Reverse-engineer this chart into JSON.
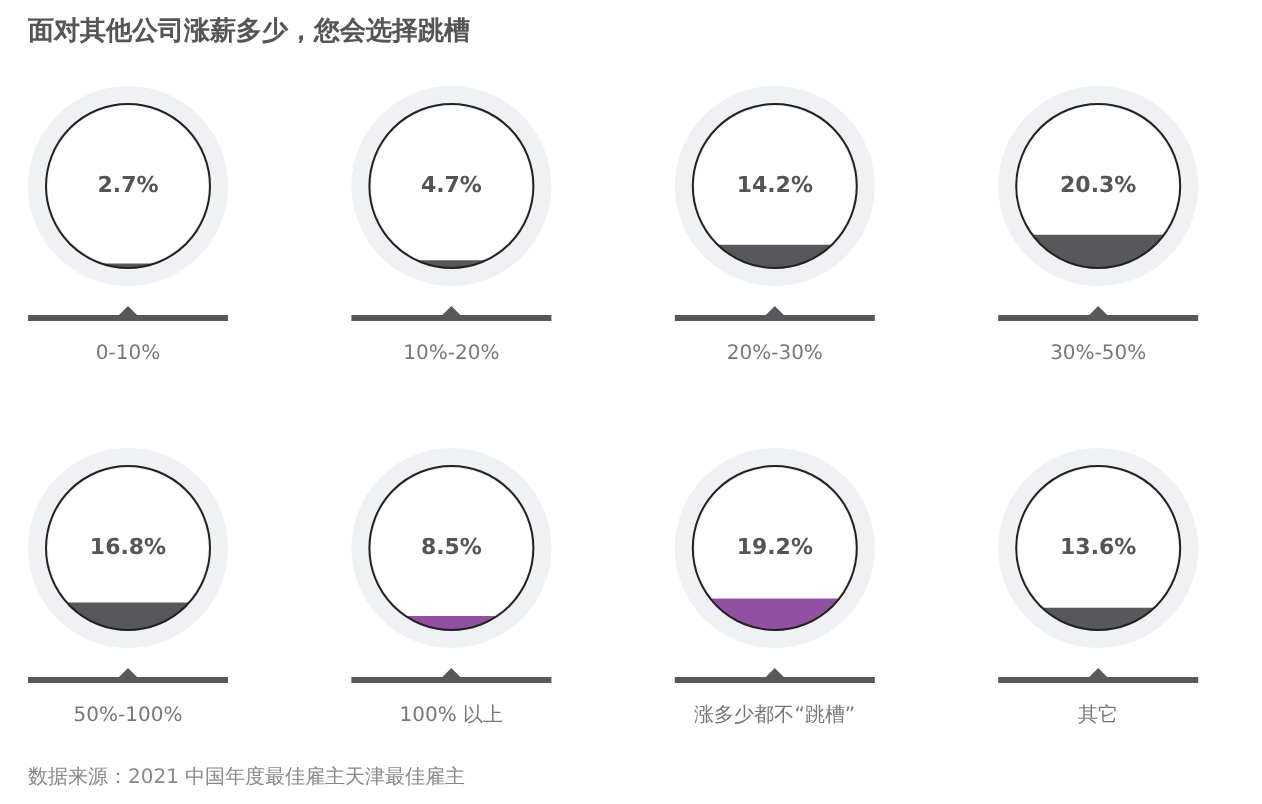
{
  "chart_data": {
    "type": "other",
    "title": "面对其他公司涨薪多少，您会选择跳槽",
    "categories": [
      "0-10%",
      "10%-20%",
      "20%-30%",
      "30%-50%",
      "50%-100%",
      "100% 以上",
      "涨多少都不“跳槽”",
      "其它"
    ],
    "values": [
      2.7,
      4.7,
      14.2,
      20.3,
      16.8,
      8.5,
      19.2,
      13.6
    ],
    "colors": [
      "#58585a",
      "#58585a",
      "#58585a",
      "#58585a",
      "#58585a",
      "#9250a2",
      "#9250a2",
      "#58585a"
    ],
    "value_labels": [
      "2.7%",
      "4.7%",
      "14.2%",
      "20.3%",
      "16.8%",
      "8.5%",
      "19.2%",
      "13.6%"
    ],
    "annotations": [
      "数据来源：2021 中国年度最佳雇主天津最佳雇主"
    ]
  }
}
